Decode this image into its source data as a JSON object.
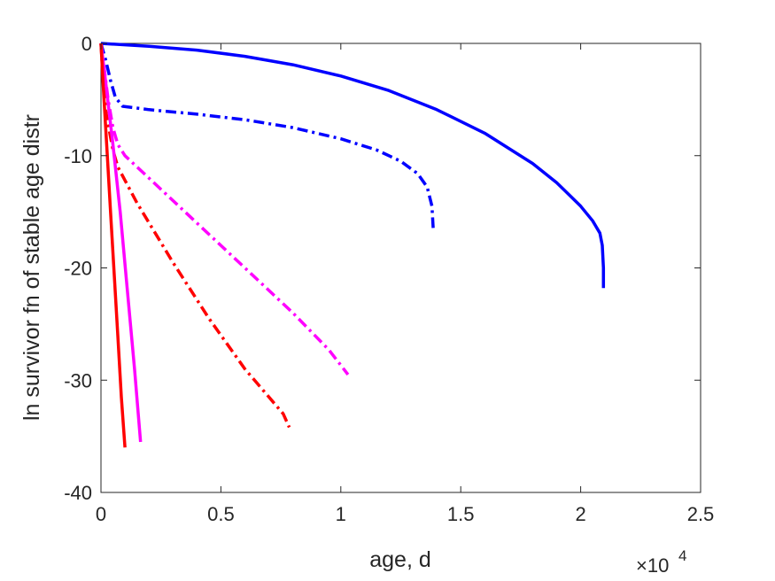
{
  "chart_data": {
    "type": "line",
    "title": "",
    "xlabel": "age, d",
    "ylabel": "ln survivor fn of stable age distr",
    "x_exponent_label": "×10",
    "x_exponent_power": "4",
    "xlim": [
      0,
      25000
    ],
    "ylim": [
      -40,
      0
    ],
    "x_tick_labels": [
      "0",
      "0.5",
      "1",
      "1.5",
      "2",
      "2.5"
    ],
    "x_tick_values": [
      0,
      5000,
      10000,
      15000,
      20000,
      25000
    ],
    "y_tick_labels": [
      "0",
      "-10",
      "-20",
      "-30",
      "-40"
    ],
    "y_tick_values": [
      0,
      -10,
      -20,
      -30,
      -40
    ],
    "grid": false,
    "colors": {
      "blue": "#0000ff",
      "magenta": "#ff00ff",
      "red": "#ff0000",
      "axis": "#262626"
    },
    "series": [
      {
        "color": "#0000ff",
        "style": "solid",
        "x": [
          0,
          2000,
          4000,
          6000,
          8000,
          10000,
          12000,
          14000,
          16000,
          18000,
          19000,
          20000,
          20500,
          20800,
          20900,
          20950,
          20950
        ],
        "y": [
          0,
          -0.25,
          -0.6,
          -1.15,
          -1.9,
          -2.9,
          -4.2,
          -5.9,
          -8.0,
          -10.7,
          -12.4,
          -14.5,
          -15.8,
          -16.9,
          -18.0,
          -20.0,
          -21.8
        ]
      },
      {
        "color": "#0000ff",
        "style": "dashdot",
        "x": [
          0,
          200,
          400,
          600,
          900,
          2000,
          4000,
          6000,
          8000,
          10000,
          11500,
          12500,
          13200,
          13600,
          13800,
          13850
        ],
        "y": [
          0,
          -1.5,
          -3.3,
          -4.8,
          -5.6,
          -5.9,
          -6.3,
          -6.8,
          -7.5,
          -8.5,
          -9.5,
          -10.5,
          -11.6,
          -12.8,
          -14.5,
          -16.5
        ]
      },
      {
        "color": "#ff00ff",
        "style": "dashdot",
        "x": [
          0,
          150,
          300,
          500,
          700,
          1000,
          2000,
          4000,
          6000,
          8000,
          9500,
          10300
        ],
        "y": [
          0,
          -2.5,
          -5.0,
          -7.5,
          -9.0,
          -10.0,
          -12.0,
          -16.0,
          -20.0,
          -24.0,
          -27.3,
          -29.5
        ]
      },
      {
        "color": "#ff0000",
        "style": "dashdot",
        "x": [
          0,
          100,
          200,
          350,
          500,
          700,
          1500,
          3000,
          4500,
          6000,
          7000,
          7600,
          7850
        ],
        "y": [
          0,
          -3.5,
          -6.0,
          -7.8,
          -9.5,
          -11.0,
          -14.2,
          -19.5,
          -24.5,
          -29.0,
          -31.5,
          -33.0,
          -34.2
        ]
      },
      {
        "color": "#ff00ff",
        "style": "solid",
        "x": [
          0,
          200,
          500,
          800,
          1100,
          1400,
          1650
        ],
        "y": [
          0,
          -3.5,
          -9.0,
          -15.0,
          -22.0,
          -29.0,
          -35.5
        ]
      },
      {
        "color": "#ff0000",
        "style": "solid",
        "x": [
          0,
          100,
          250,
          400,
          550,
          700,
          850,
          1000
        ],
        "y": [
          0,
          -4.0,
          -9.5,
          -15.0,
          -20.5,
          -26.0,
          -31.5,
          -36.0
        ]
      }
    ]
  }
}
